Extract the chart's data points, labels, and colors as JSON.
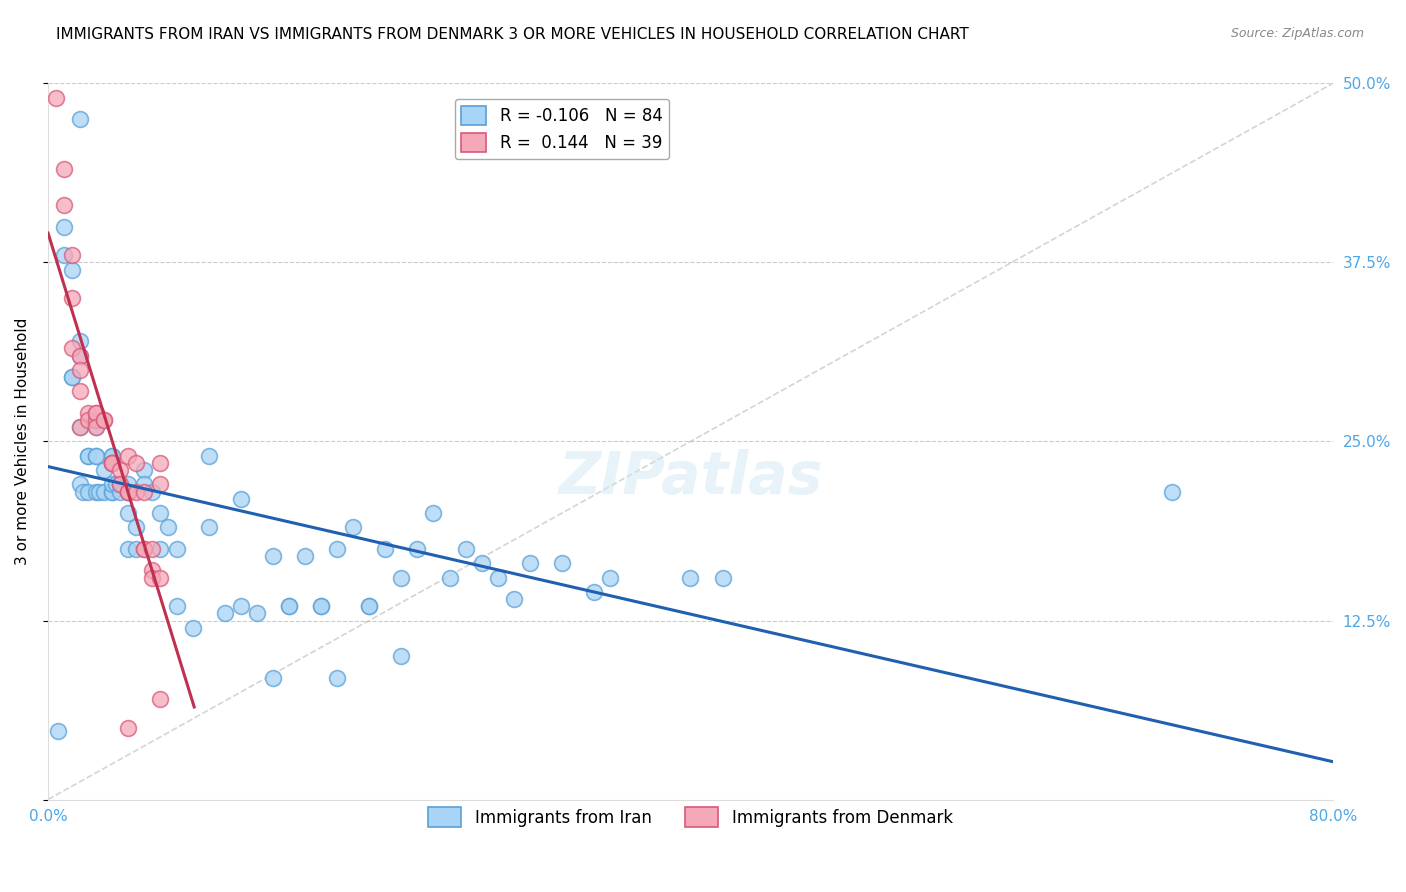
{
  "title": "IMMIGRANTS FROM IRAN VS IMMIGRANTS FROM DENMARK 3 OR MORE VEHICLES IN HOUSEHOLD CORRELATION CHART",
  "source": "Source: ZipAtlas.com",
  "ylabel": "3 or more Vehicles in Household",
  "xmin": 0.0,
  "xmax": 0.8,
  "ymin": 0.0,
  "ymax": 0.5,
  "yticks": [
    0.0,
    0.125,
    0.25,
    0.375,
    0.5
  ],
  "xticks": [
    0.0,
    0.1,
    0.2,
    0.3,
    0.4,
    0.5,
    0.6,
    0.7,
    0.8
  ],
  "xtick_labels": [
    "0.0%",
    "",
    "",
    "",
    "",
    "",
    "",
    "",
    "80.0%"
  ],
  "ytick_labels_right": [
    "",
    "12.5%",
    "25.0%",
    "37.5%",
    "50.0%"
  ],
  "iran_color": "#a8d4f5",
  "denmark_color": "#f5a8b8",
  "iran_edge_color": "#5aa0d8",
  "denmark_edge_color": "#d85a7a",
  "trend_iran_color": "#2060b0",
  "trend_denmark_color": "#c03050",
  "diag_color": "#b8b8b8",
  "R_iran": -0.106,
  "N_iran": 84,
  "R_denmark": 0.144,
  "N_denmark": 39,
  "iran_x": [
    0.006,
    0.01,
    0.01,
    0.015,
    0.015,
    0.015,
    0.02,
    0.02,
    0.02,
    0.02,
    0.02,
    0.022,
    0.025,
    0.025,
    0.025,
    0.03,
    0.03,
    0.03,
    0.03,
    0.03,
    0.03,
    0.032,
    0.035,
    0.035,
    0.04,
    0.04,
    0.04,
    0.04,
    0.04,
    0.04,
    0.042,
    0.045,
    0.045,
    0.05,
    0.05,
    0.05,
    0.05,
    0.05,
    0.055,
    0.055,
    0.06,
    0.06,
    0.065,
    0.07,
    0.07,
    0.075,
    0.08,
    0.08,
    0.09,
    0.1,
    0.1,
    0.11,
    0.12,
    0.12,
    0.13,
    0.14,
    0.15,
    0.15,
    0.16,
    0.17,
    0.17,
    0.18,
    0.19,
    0.2,
    0.2,
    0.21,
    0.22,
    0.23,
    0.24,
    0.25,
    0.26,
    0.27,
    0.28,
    0.29,
    0.3,
    0.32,
    0.34,
    0.35,
    0.4,
    0.42,
    0.7,
    0.14,
    0.18,
    0.22
  ],
  "iran_y": [
    0.048,
    0.4,
    0.38,
    0.37,
    0.295,
    0.295,
    0.475,
    0.32,
    0.31,
    0.26,
    0.22,
    0.215,
    0.215,
    0.24,
    0.24,
    0.265,
    0.26,
    0.265,
    0.24,
    0.24,
    0.215,
    0.215,
    0.215,
    0.23,
    0.215,
    0.215,
    0.235,
    0.24,
    0.24,
    0.22,
    0.22,
    0.215,
    0.22,
    0.215,
    0.215,
    0.22,
    0.2,
    0.175,
    0.175,
    0.19,
    0.23,
    0.22,
    0.215,
    0.2,
    0.175,
    0.19,
    0.175,
    0.135,
    0.12,
    0.24,
    0.19,
    0.13,
    0.135,
    0.21,
    0.13,
    0.17,
    0.135,
    0.135,
    0.17,
    0.135,
    0.135,
    0.175,
    0.19,
    0.135,
    0.135,
    0.175,
    0.155,
    0.175,
    0.2,
    0.155,
    0.175,
    0.165,
    0.155,
    0.14,
    0.165,
    0.165,
    0.145,
    0.155,
    0.155,
    0.155,
    0.215,
    0.085,
    0.085,
    0.1
  ],
  "denmark_x": [
    0.005,
    0.01,
    0.01,
    0.015,
    0.015,
    0.015,
    0.02,
    0.02,
    0.02,
    0.02,
    0.025,
    0.025,
    0.03,
    0.03,
    0.03,
    0.03,
    0.035,
    0.035,
    0.04,
    0.04,
    0.04,
    0.045,
    0.045,
    0.05,
    0.05,
    0.05,
    0.055,
    0.055,
    0.06,
    0.06,
    0.06,
    0.065,
    0.065,
    0.065,
    0.07,
    0.07,
    0.07,
    0.07,
    0.05
  ],
  "denmark_y": [
    0.49,
    0.44,
    0.415,
    0.38,
    0.35,
    0.315,
    0.31,
    0.3,
    0.285,
    0.26,
    0.27,
    0.265,
    0.265,
    0.27,
    0.27,
    0.26,
    0.265,
    0.265,
    0.235,
    0.235,
    0.235,
    0.23,
    0.22,
    0.215,
    0.215,
    0.24,
    0.215,
    0.235,
    0.175,
    0.175,
    0.215,
    0.16,
    0.155,
    0.175,
    0.235,
    0.22,
    0.155,
    0.07,
    0.05
  ],
  "legend_iran_label": "Immigrants from Iran",
  "legend_denmark_label": "Immigrants from Denmark",
  "background_color": "#ffffff",
  "grid_color": "#cccccc",
  "tick_color": "#4da6e8",
  "title_fontsize": 11,
  "axis_label_fontsize": 11,
  "tick_fontsize": 11,
  "marker_size": 130
}
